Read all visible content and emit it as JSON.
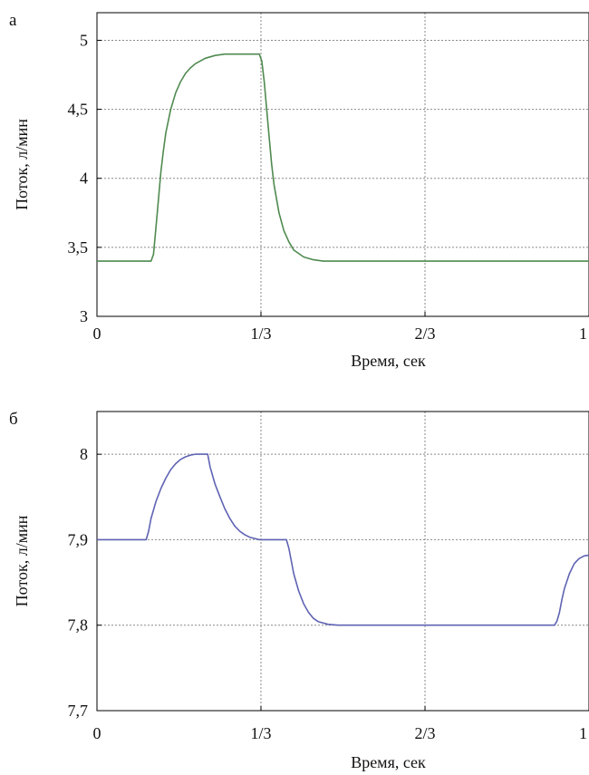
{
  "chart_data": [
    {
      "type": "line",
      "panel_label": "а",
      "xlabel": "Время, сек",
      "ylabel": "Поток, л/мин",
      "xlim": [
        0,
        1
      ],
      "ylim": [
        3,
        5.2
      ],
      "x_ticks": [
        0,
        0.3333,
        0.6667,
        1
      ],
      "x_tick_labels": [
        "0",
        "1/3",
        "2/3",
        "1"
      ],
      "y_ticks": [
        3,
        3.5,
        4,
        4.5,
        5
      ],
      "y_tick_labels": [
        "3",
        "3,5",
        "4",
        "4,5",
        "5"
      ],
      "grid": true,
      "series": [
        {
          "color": "#4f8a4f",
          "x": [
            0,
            0.11,
            0.115,
            0.12,
            0.125,
            0.13,
            0.135,
            0.14,
            0.15,
            0.16,
            0.17,
            0.18,
            0.19,
            0.2,
            0.21,
            0.22,
            0.24,
            0.26,
            0.28,
            0.3,
            0.33,
            0.335,
            0.34,
            0.345,
            0.35,
            0.355,
            0.36,
            0.37,
            0.38,
            0.39,
            0.4,
            0.42,
            0.44,
            0.46,
            0.5,
            0.6,
            0.8,
            1.0
          ],
          "y": [
            3.4,
            3.4,
            3.45,
            3.65,
            3.85,
            4.05,
            4.2,
            4.33,
            4.5,
            4.62,
            4.7,
            4.76,
            4.8,
            4.83,
            4.85,
            4.87,
            4.89,
            4.9,
            4.9,
            4.9,
            4.9,
            4.85,
            4.7,
            4.5,
            4.3,
            4.1,
            3.95,
            3.75,
            3.62,
            3.54,
            3.48,
            3.43,
            3.41,
            3.4,
            3.4,
            3.4,
            3.4,
            3.4
          ]
        }
      ]
    },
    {
      "type": "line",
      "panel_label": "б",
      "xlabel": "Время, сек",
      "ylabel": "Поток, л/мин",
      "xlim": [
        0,
        1
      ],
      "ylim": [
        7.7,
        8.05
      ],
      "x_ticks": [
        0,
        0.3333,
        0.6667,
        1
      ],
      "x_tick_labels": [
        "0",
        "1/3",
        "2/3",
        "1"
      ],
      "y_ticks": [
        7.7,
        7.8,
        7.9,
        8
      ],
      "y_tick_labels": [
        "7,7",
        "7,8",
        "7,9",
        "8"
      ],
      "grid": true,
      "series": [
        {
          "color": "#5f63b3",
          "x": [
            0,
            0.1,
            0.105,
            0.11,
            0.12,
            0.13,
            0.14,
            0.15,
            0.16,
            0.17,
            0.18,
            0.19,
            0.2,
            0.21,
            0.22,
            0.225,
            0.23,
            0.24,
            0.25,
            0.26,
            0.27,
            0.28,
            0.29,
            0.3,
            0.31,
            0.33,
            0.37,
            0.385,
            0.39,
            0.395,
            0.4,
            0.41,
            0.42,
            0.43,
            0.44,
            0.45,
            0.47,
            0.49,
            0.52,
            0.6,
            0.8,
            0.93,
            0.935,
            0.94,
            0.945,
            0.95,
            0.96,
            0.97,
            0.98,
            0.99,
            1.0
          ],
          "y": [
            7.9,
            7.9,
            7.91,
            7.925,
            7.945,
            7.96,
            7.972,
            7.982,
            7.989,
            7.994,
            7.997,
            7.999,
            8.0,
            8.0,
            8.0,
            8.0,
            7.985,
            7.965,
            7.95,
            7.936,
            7.925,
            7.916,
            7.91,
            7.906,
            7.903,
            7.9,
            7.9,
            7.9,
            7.89,
            7.875,
            7.86,
            7.84,
            7.825,
            7.815,
            7.808,
            7.804,
            7.801,
            7.8,
            7.8,
            7.8,
            7.8,
            7.8,
            7.805,
            7.815,
            7.83,
            7.843,
            7.86,
            7.872,
            7.878,
            7.881,
            7.882
          ]
        }
      ]
    }
  ]
}
